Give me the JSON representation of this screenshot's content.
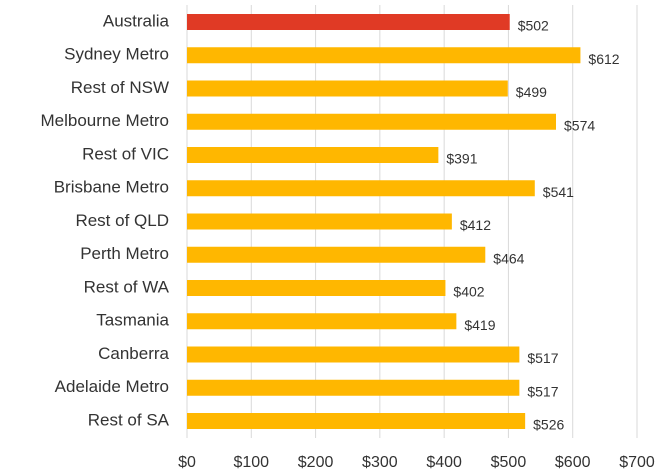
{
  "chart_data": {
    "type": "barh",
    "categories": [
      "Australia",
      "Sydney Metro",
      "Rest of NSW",
      "Melbourne Metro",
      "Rest of VIC",
      "Brisbane Metro",
      "Rest of QLD",
      "Perth Metro",
      "Rest of WA",
      "Tasmania",
      "Canberra",
      "Adelaide Metro",
      "Rest of SA"
    ],
    "values": [
      502,
      612,
      499,
      574,
      391,
      541,
      412,
      464,
      402,
      419,
      517,
      517,
      526
    ],
    "value_labels": [
      "$502",
      "$612",
      "$499",
      "$574",
      "$391",
      "$541",
      "$412",
      "$464",
      "$402",
      "$419",
      "$517",
      "$517",
      "$526"
    ],
    "colors": [
      "#e03a25",
      "#ffb700",
      "#ffb700",
      "#ffb700",
      "#ffb700",
      "#ffb700",
      "#ffb700",
      "#ffb700",
      "#ffb700",
      "#ffb700",
      "#ffb700",
      "#ffb700",
      "#ffb700"
    ],
    "xlim": [
      0,
      700
    ],
    "xticks": [
      {
        "value": 0,
        "label": "$0"
      },
      {
        "value": 100,
        "label": "$100"
      },
      {
        "value": 200,
        "label": "$200"
      },
      {
        "value": 300,
        "label": "$300"
      },
      {
        "value": 400,
        "label": "$400"
      },
      {
        "value": 500,
        "label": "$500"
      },
      {
        "value": 600,
        "label": "$600"
      },
      {
        "value": 700,
        "label": "$700"
      }
    ],
    "grid": true
  }
}
